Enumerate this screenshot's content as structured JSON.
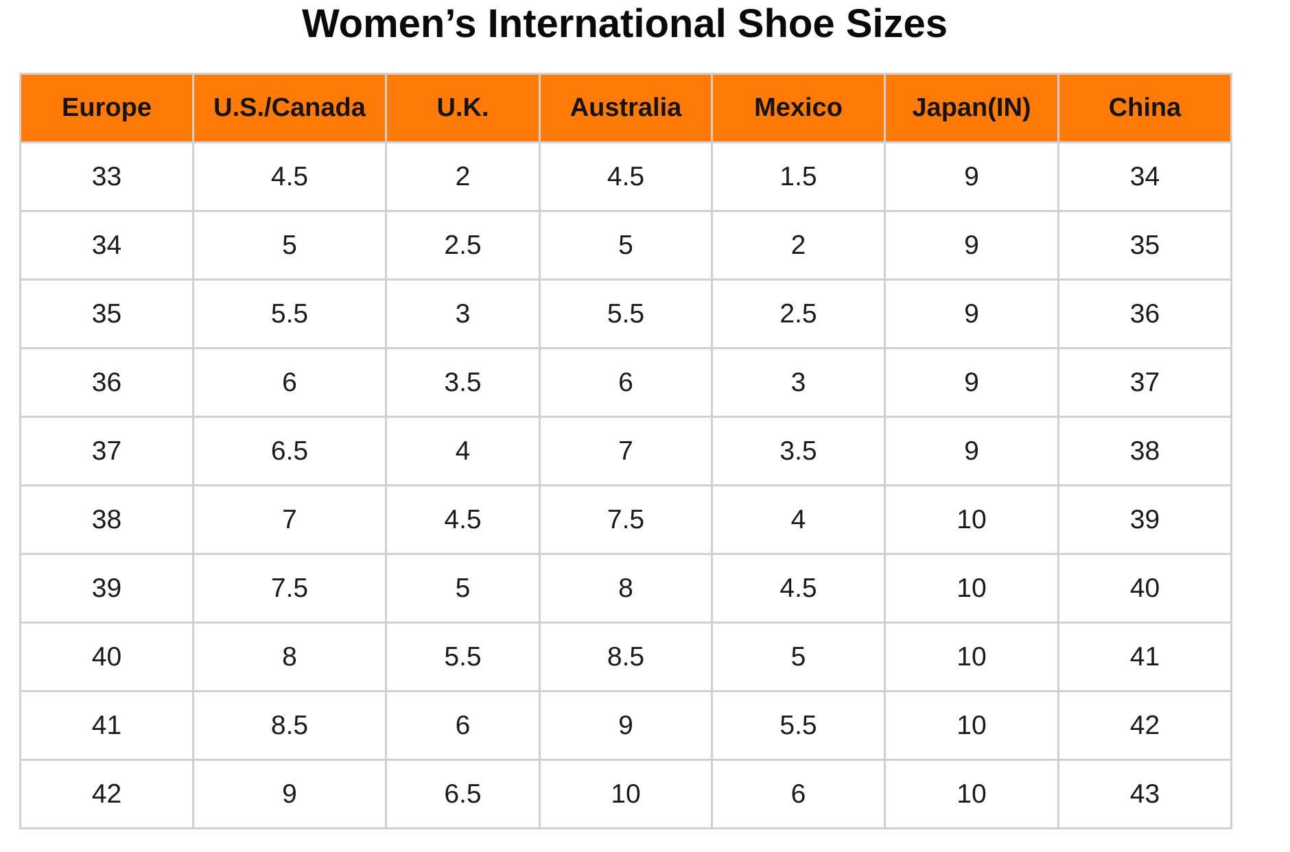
{
  "title": "Women’s International Shoe Sizes",
  "colors": {
    "header_bg": "#ff7a07",
    "grid": "#d0d0d0"
  },
  "columns": [
    "Europe",
    "U.S./Canada",
    "U.K.",
    "Australia",
    "Mexico",
    "Japan(IN)",
    "China"
  ],
  "rows": [
    [
      "33",
      "4.5",
      "2",
      "4.5",
      "1.5",
      "9",
      "34"
    ],
    [
      "34",
      "5",
      "2.5",
      "5",
      "2",
      "9",
      "35"
    ],
    [
      "35",
      "5.5",
      "3",
      "5.5",
      "2.5",
      "9",
      "36"
    ],
    [
      "36",
      "6",
      "3.5",
      "6",
      "3",
      "9",
      "37"
    ],
    [
      "37",
      "6.5",
      "4",
      "7",
      "3.5",
      "9",
      "38"
    ],
    [
      "38",
      "7",
      "4.5",
      "7.5",
      "4",
      "10",
      "39"
    ],
    [
      "39",
      "7.5",
      "5",
      "8",
      "4.5",
      "10",
      "40"
    ],
    [
      "40",
      "8",
      "5.5",
      "8.5",
      "5",
      "10",
      "41"
    ],
    [
      "41",
      "8.5",
      "6",
      "9",
      "5.5",
      "10",
      "42"
    ],
    [
      "42",
      "9",
      "6.5",
      "10",
      "6",
      "10",
      "43"
    ]
  ]
}
